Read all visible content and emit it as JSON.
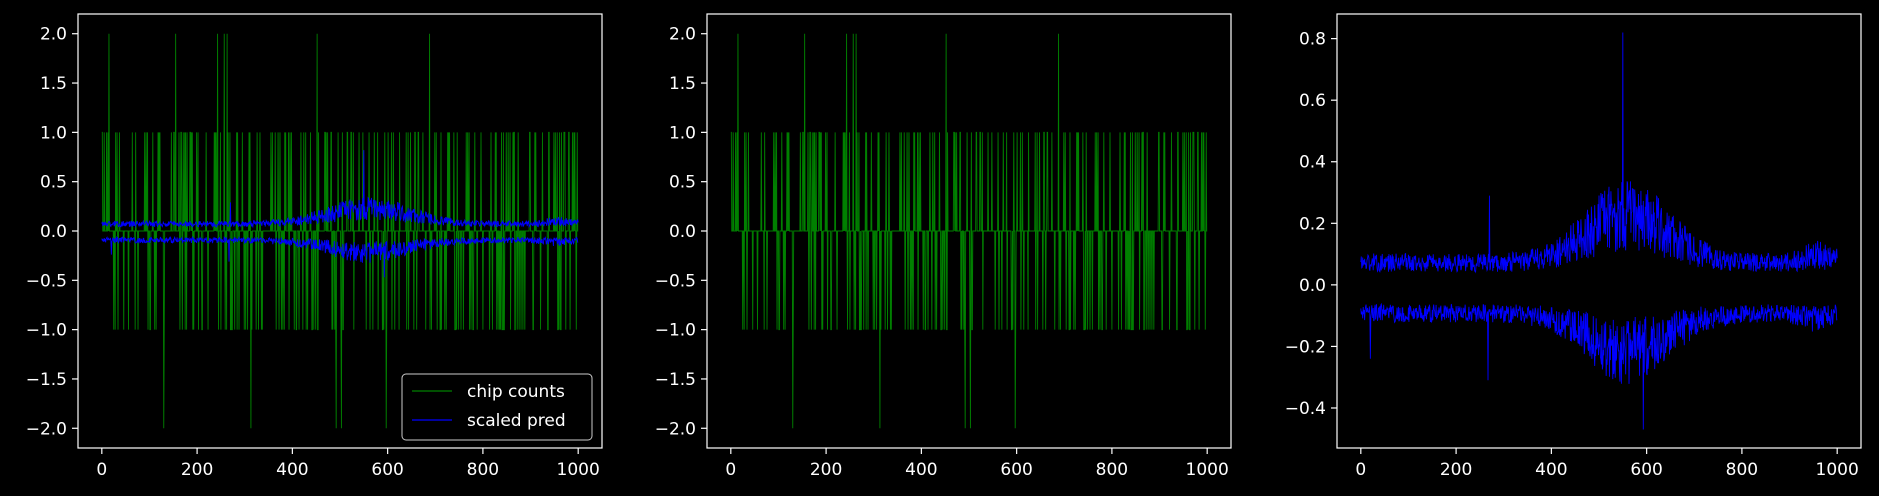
{
  "style": {
    "background": "#000000",
    "axes_color": "#ffffff",
    "series_colors": {
      "chip counts": "#008000",
      "scaled pred": "#0000ff"
    }
  },
  "chart_data": [
    {
      "type": "line",
      "panel": 1,
      "xlim": [
        -50,
        1050
      ],
      "ylim": [
        -2.2,
        2.2
      ],
      "xticks": [
        0,
        200,
        400,
        600,
        800,
        1000
      ],
      "yticks": [
        2.0,
        1.5,
        1.0,
        0.5,
        0.0,
        -0.5,
        -1.0,
        -1.5,
        -2.0
      ],
      "xticklabels": [
        "0",
        "200",
        "400",
        "600",
        "800",
        "1000"
      ],
      "yticklabels": [
        "2.0",
        "1.5",
        "1.0",
        "0.5",
        "0.0",
        "−0.5",
        "−1.0",
        "−1.5",
        "−2.0"
      ],
      "x_range": [
        0,
        1000
      ],
      "legend": {
        "placement": "lower-right",
        "entries": [
          "chip counts",
          "scaled pred"
        ]
      },
      "series": [
        {
          "name": "chip counts",
          "color": "#008000",
          "kind": "integer steps in {-2,-1,0,1,2}, mostly 0",
          "spikes_plus2": [
            15,
            155,
            243,
            257,
            263,
            452,
            688
          ],
          "spikes_minus2": [
            130,
            313,
            492,
            503,
            597
          ],
          "approx_nonzero_fraction": 0.3
        },
        {
          "name": "scaled pred",
          "color": "#0000ff",
          "kind": "two noisy envelopes",
          "upper_baseline": 0.06,
          "lower_baseline": -0.08,
          "peak_near_x": 550,
          "peak_upper": 0.82,
          "trough_lower": -0.47
        }
      ]
    },
    {
      "type": "line",
      "panel": 2,
      "xlim": [
        -50,
        1050
      ],
      "ylim": [
        -2.2,
        2.2
      ],
      "xticks": [
        0,
        200,
        400,
        600,
        800,
        1000
      ],
      "yticks": [
        2.0,
        1.5,
        1.0,
        0.5,
        0.0,
        -0.5,
        -1.0,
        -1.5,
        -2.0
      ],
      "xticklabels": [
        "0",
        "200",
        "400",
        "600",
        "800",
        "1000"
      ],
      "yticklabels": [
        "2.0",
        "1.5",
        "1.0",
        "0.5",
        "0.0",
        "−0.5",
        "−1.0",
        "−1.5",
        "−2.0"
      ],
      "x_range": [
        0,
        1000
      ],
      "series": [
        {
          "color": "#008000",
          "kind": "integer steps in {-2,-1,0,1,2}, mostly 0",
          "spikes_plus2": [
            15,
            155,
            243,
            257,
            263,
            452,
            688
          ],
          "spikes_minus2": [
            130,
            313,
            492,
            503,
            597
          ],
          "approx_nonzero_fraction": 0.3
        }
      ]
    },
    {
      "type": "line",
      "panel": 3,
      "xlim": [
        -50,
        1050
      ],
      "ylim": [
        -0.53,
        0.88
      ],
      "xticks": [
        0,
        200,
        400,
        600,
        800,
        1000
      ],
      "yticks": [
        0.8,
        0.6,
        0.4,
        0.2,
        0.0,
        -0.2,
        -0.4
      ],
      "xticklabels": [
        "0",
        "200",
        "400",
        "600",
        "800",
        "1000"
      ],
      "yticklabels": [
        "0.8",
        "0.6",
        "0.4",
        "0.2",
        "0.0",
        "−0.2",
        "−0.4"
      ],
      "x_range": [
        0,
        1000
      ],
      "series": [
        {
          "color": "#0000ff",
          "kind": "two noisy envelopes",
          "upper_baseline": 0.06,
          "lower_baseline": -0.08,
          "peak_near_x": 550,
          "peak_upper": 0.82,
          "trough_lower": -0.47
        }
      ]
    }
  ]
}
